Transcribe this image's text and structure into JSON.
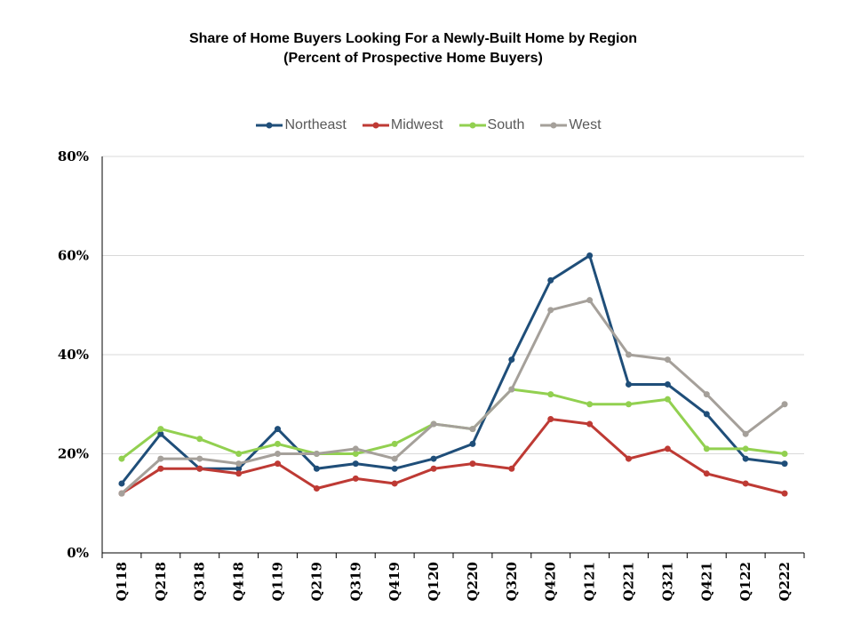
{
  "chart_data": {
    "type": "line",
    "title": "Share of Home Buyers Looking For a Newly-Built Home by Region",
    "subtitle": "(Percent of Prospective Home Buyers)",
    "xlabel": "",
    "ylabel": "",
    "ylim": [
      0,
      80
    ],
    "y_ticks": [
      "0%",
      "20%",
      "40%",
      "60%",
      "80%"
    ],
    "grid": true,
    "legend_position": "top",
    "categories": [
      "Q118",
      "Q218",
      "Q318",
      "Q418",
      "Q119",
      "Q219",
      "Q319",
      "Q419",
      "Q120",
      "Q220",
      "Q320",
      "Q420",
      "Q121",
      "Q221",
      "Q321",
      "Q421",
      "Q122",
      "Q222"
    ],
    "series": [
      {
        "name": "Northeast",
        "color": "#1f4e79",
        "values": [
          14,
          24,
          17,
          17,
          25,
          17,
          18,
          17,
          19,
          22,
          39,
          55,
          60,
          34,
          34,
          28,
          19,
          18
        ]
      },
      {
        "name": "Midwest",
        "color": "#be3a34",
        "values": [
          12,
          17,
          17,
          16,
          18,
          13,
          15,
          14,
          17,
          18,
          17,
          27,
          26,
          19,
          21,
          16,
          14,
          12
        ]
      },
      {
        "name": "South",
        "color": "#92d050",
        "values": [
          19,
          25,
          23,
          20,
          22,
          20,
          20,
          22,
          26,
          25,
          33,
          32,
          30,
          30,
          31,
          21,
          21,
          20
        ]
      },
      {
        "name": "West",
        "color": "#a5a09a",
        "values": [
          12,
          19,
          19,
          18,
          20,
          20,
          21,
          19,
          26,
          25,
          33,
          49,
          51,
          40,
          39,
          32,
          24,
          30
        ]
      }
    ]
  }
}
